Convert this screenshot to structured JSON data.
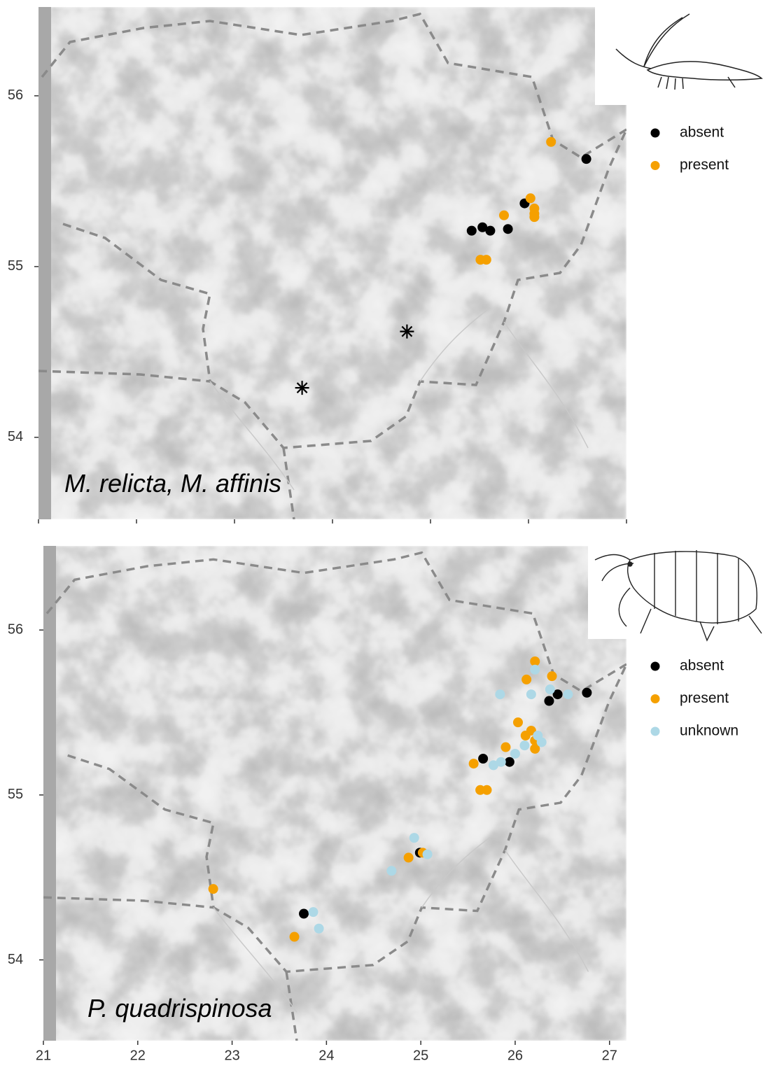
{
  "chart_data": [
    {
      "type": "scatter",
      "annotation": "M. relicta, M. affinis",
      "xlim": [
        21,
        27
      ],
      "ylim": [
        53.52,
        56.52
      ],
      "xticks": [
        21,
        22,
        23,
        24,
        25,
        26,
        27
      ],
      "xtick_labels": false,
      "yticks": [
        54,
        55,
        56
      ],
      "legend": "right",
      "series": [
        {
          "name": "absent",
          "color": "#000000",
          "x": [
            26.59,
            25.96,
            25.42,
            25.53,
            25.61,
            25.79
          ],
          "y": [
            55.63,
            55.37,
            55.21,
            55.23,
            55.21,
            55.22
          ]
        },
        {
          "name": "present",
          "color": "#f5a000",
          "x": [
            26.23,
            25.75,
            26.02,
            26.06,
            26.06,
            26.06,
            25.51,
            25.57
          ],
          "y": [
            55.73,
            55.3,
            55.4,
            55.34,
            55.31,
            55.29,
            55.04,
            55.04
          ]
        },
        {
          "color": "#000000",
          "marker": "asterisk",
          "x": [
            24.76,
            23.69
          ],
          "y": [
            54.62,
            54.29
          ]
        }
      ]
    },
    {
      "type": "scatter",
      "annotation": "P. quadrispinosa",
      "xlim": [
        21,
        27.18
      ],
      "ylim": [
        53.51,
        56.51
      ],
      "xticks": [
        21,
        22,
        23,
        24,
        25,
        26,
        27
      ],
      "xtick_labels": true,
      "yticks": [
        54,
        55,
        56
      ],
      "legend": "right",
      "series": [
        {
          "name": "absent",
          "color": "#000000",
          "x": [
            26.76,
            26.45,
            26.36,
            25.66,
            25.94,
            24.99,
            23.76
          ],
          "y": [
            55.62,
            55.61,
            55.57,
            55.22,
            55.2,
            54.65,
            54.28
          ]
        },
        {
          "name": "present",
          "color": "#f5a000",
          "x": [
            26.21,
            26.39,
            26.12,
            26.03,
            26.17,
            26.11,
            26.21,
            26.21,
            25.9,
            25.56,
            25.63,
            25.7,
            25.02,
            24.87,
            22.8,
            23.66
          ],
          "y": [
            55.81,
            55.72,
            55.7,
            55.44,
            55.39,
            55.36,
            55.33,
            55.28,
            55.29,
            55.19,
            55.03,
            55.03,
            54.65,
            54.62,
            54.43,
            54.14
          ]
        },
        {
          "name": "unknown",
          "color": "#add8e6",
          "x": [
            26.21,
            25.84,
            26.17,
            26.37,
            26.56,
            26.24,
            26.28,
            26.1,
            26.0,
            25.85,
            25.77,
            24.93,
            25.07,
            24.69,
            23.86,
            23.92
          ],
          "y": [
            55.76,
            55.61,
            55.61,
            55.64,
            55.61,
            55.36,
            55.32,
            55.3,
            55.25,
            55.2,
            55.18,
            54.74,
            54.64,
            54.54,
            54.29,
            54.19
          ]
        }
      ]
    }
  ]
}
